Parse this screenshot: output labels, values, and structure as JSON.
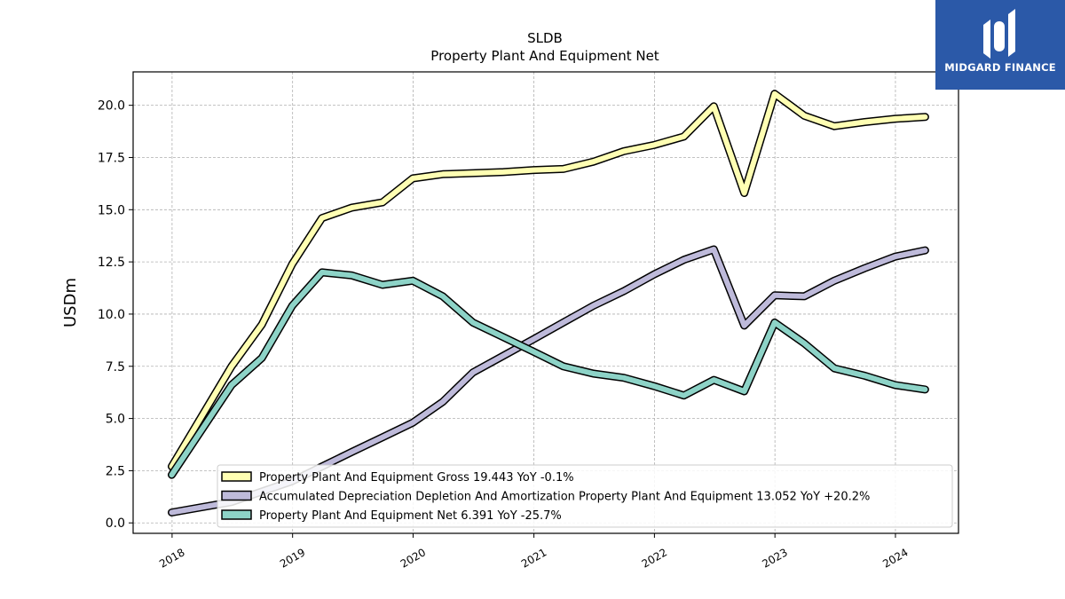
{
  "brand": {
    "name": "MIDGARD FINANCE",
    "color": "#2b59a8"
  },
  "chart_data": {
    "type": "line",
    "title": "SLDB",
    "subtitle": "Property Plant And Equipment Net",
    "xlabel": "",
    "ylabel": "USDm",
    "ylim": [
      -0.5,
      21.6
    ],
    "xlim": [
      "2017-09-05",
      "2024-07-10"
    ],
    "yticks": [
      0.0,
      2.5,
      5.0,
      7.5,
      10.0,
      12.5,
      15.0,
      17.5,
      20.0
    ],
    "ytick_labels": [
      "0.0",
      "2.5",
      "5.0",
      "7.5",
      "10.0",
      "12.5",
      "15.0",
      "17.5",
      "20.0"
    ],
    "xtick_labels": [
      "2018",
      "2019",
      "2020",
      "2021",
      "2022",
      "2023",
      "2024"
    ],
    "xtick_dates": [
      "2018-01-01",
      "2019-01-01",
      "2020-01-01",
      "2021-01-01",
      "2022-01-01",
      "2023-01-01",
      "2024-01-01"
    ],
    "grid": true,
    "legend_position": "lower right",
    "series": [
      {
        "name": "Property Plant And Equipment Gross",
        "legend_label": "Property Plant And Equipment Gross  19.443 YoY -0.1%",
        "color": "#ffffb3",
        "x": [
          "2017-12-31",
          "2018-06-30",
          "2018-09-30",
          "2018-12-31",
          "2019-03-31",
          "2019-06-30",
          "2019-09-30",
          "2019-12-31",
          "2020-03-31",
          "2020-06-30",
          "2020-09-30",
          "2020-12-31",
          "2021-03-31",
          "2021-06-30",
          "2021-09-30",
          "2021-12-31",
          "2022-03-31",
          "2022-06-30",
          "2022-09-30",
          "2022-12-31",
          "2023-03-31",
          "2023-06-30",
          "2023-09-30",
          "2023-12-31",
          "2024-03-31"
        ],
        "values": [
          2.7,
          7.5,
          9.5,
          12.4,
          14.6,
          15.1,
          15.35,
          16.5,
          16.7,
          16.75,
          16.8,
          16.9,
          16.95,
          17.3,
          17.8,
          18.1,
          18.5,
          19.95,
          15.8,
          20.55,
          19.5,
          19.0,
          19.2,
          19.35,
          19.443
        ]
      },
      {
        "name": "Accumulated Depreciation Depletion And Amortization Property Plant And Equipment",
        "legend_label": "Accumulated Depreciation Depletion And Amortization Property Plant And Equipment  13.052 YoY +20.2%",
        "color": "#bebada",
        "x": [
          "2017-12-31",
          "2018-06-30",
          "2018-09-30",
          "2018-12-31",
          "2019-03-31",
          "2019-06-30",
          "2019-09-30",
          "2019-12-31",
          "2020-03-31",
          "2020-06-30",
          "2020-09-30",
          "2020-12-31",
          "2021-03-31",
          "2021-06-30",
          "2021-09-30",
          "2021-12-31",
          "2022-03-31",
          "2022-06-30",
          "2022-09-30",
          "2022-12-31",
          "2023-03-31",
          "2023-06-30",
          "2023-09-30",
          "2023-12-31",
          "2024-03-31"
        ],
        "values": [
          0.5,
          1.0,
          1.5,
          2.0,
          2.7,
          3.4,
          4.1,
          4.8,
          5.8,
          7.2,
          8.0,
          8.8,
          9.6,
          10.4,
          11.1,
          11.9,
          12.6,
          13.1,
          9.45,
          10.9,
          10.85,
          11.6,
          12.2,
          12.75,
          13.052
        ]
      },
      {
        "name": "Property Plant And Equipment Net",
        "legend_label": "Property Plant And Equipment Net  6.391 YoY -25.7%",
        "color": "#8dd3c7",
        "x": [
          "2017-12-31",
          "2018-06-30",
          "2018-09-30",
          "2018-12-31",
          "2019-03-31",
          "2019-06-30",
          "2019-09-30",
          "2019-12-31",
          "2020-03-31",
          "2020-06-30",
          "2020-09-30",
          "2020-12-31",
          "2021-03-31",
          "2021-06-30",
          "2021-09-30",
          "2021-12-31",
          "2022-03-31",
          "2022-06-30",
          "2022-09-30",
          "2022-12-31",
          "2023-03-31",
          "2023-06-30",
          "2023-09-30",
          "2023-12-31",
          "2024-03-31"
        ],
        "values": [
          2.3,
          6.6,
          7.9,
          10.4,
          12.0,
          11.85,
          11.4,
          11.6,
          10.85,
          9.6,
          8.9,
          8.2,
          7.5,
          7.15,
          6.95,
          6.55,
          6.1,
          6.85,
          6.3,
          9.6,
          8.6,
          7.4,
          7.05,
          6.6,
          6.391
        ]
      }
    ]
  }
}
